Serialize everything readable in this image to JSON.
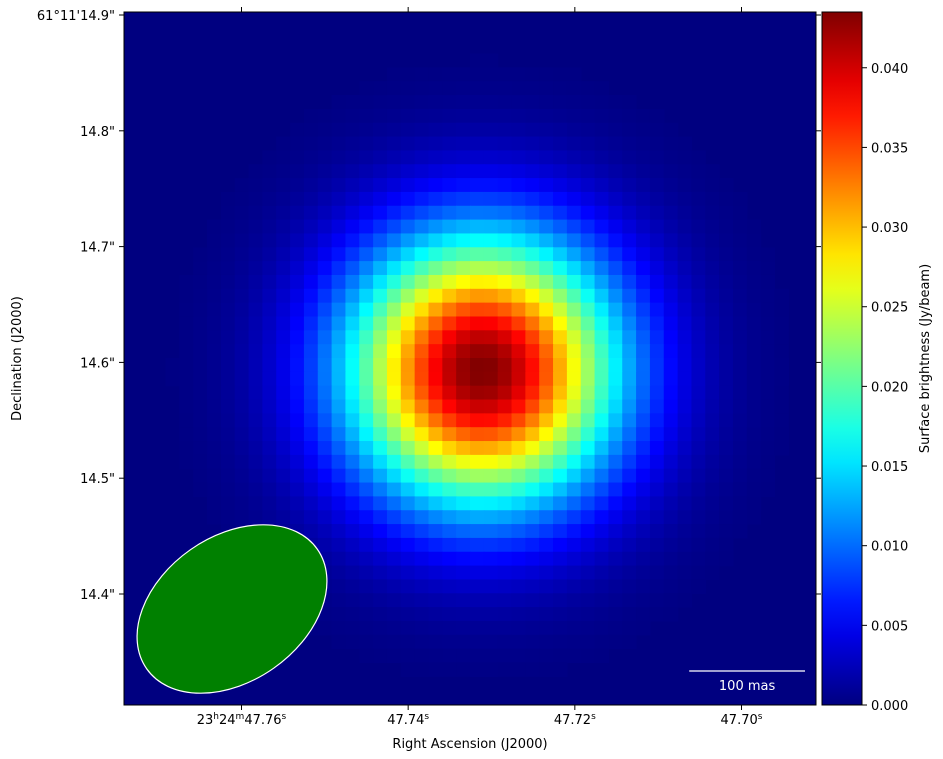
{
  "chart_data": {
    "type": "heatmap",
    "title": "",
    "xlabel": "Right Ascension (J2000)",
    "ylabel": "Declination (J2000)",
    "x_ticks": [
      {
        "h": "23",
        "m": "24",
        "sec": "47.76",
        "full": true
      },
      {
        "sec": "47.74",
        "full": false
      },
      {
        "sec": "47.72",
        "full": false
      },
      {
        "sec": "47.70",
        "full": false
      }
    ],
    "y_ticks": [
      {
        "label": "61°11'14.9\"",
        "value_arcsec": 14.9
      },
      {
        "label": "14.8\"",
        "value_arcsec": 14.8
      },
      {
        "label": "14.7\"",
        "value_arcsec": 14.7
      },
      {
        "label": "14.6\"",
        "value_arcsec": 14.6
      },
      {
        "label": "14.5\"",
        "value_arcsec": 14.5
      },
      {
        "label": "14.4\"",
        "value_arcsec": 14.4
      }
    ],
    "source": {
      "peak_ra_sec": 47.7311,
      "peak_dec_arcsec": 14.593,
      "peak_value": 0.0435,
      "fwhm_mas": 190
    },
    "colormap": "jet",
    "colorbar": {
      "label": "Surface brightness (Jy/beam)",
      "range": [
        0.0,
        0.0435
      ],
      "ticks": [
        "0.000",
        "0.005",
        "0.010",
        "0.015",
        "0.020",
        "0.025",
        "0.030",
        "0.035",
        "0.040"
      ]
    },
    "beam": {
      "color": "#008000",
      "edge_color": "#ffffff",
      "major_mas": 180,
      "minor_mas": 125,
      "pa_deg": 35
    },
    "scalebar": {
      "label": "100 mas",
      "length_mas": 100,
      "color": "#ffffff"
    }
  }
}
